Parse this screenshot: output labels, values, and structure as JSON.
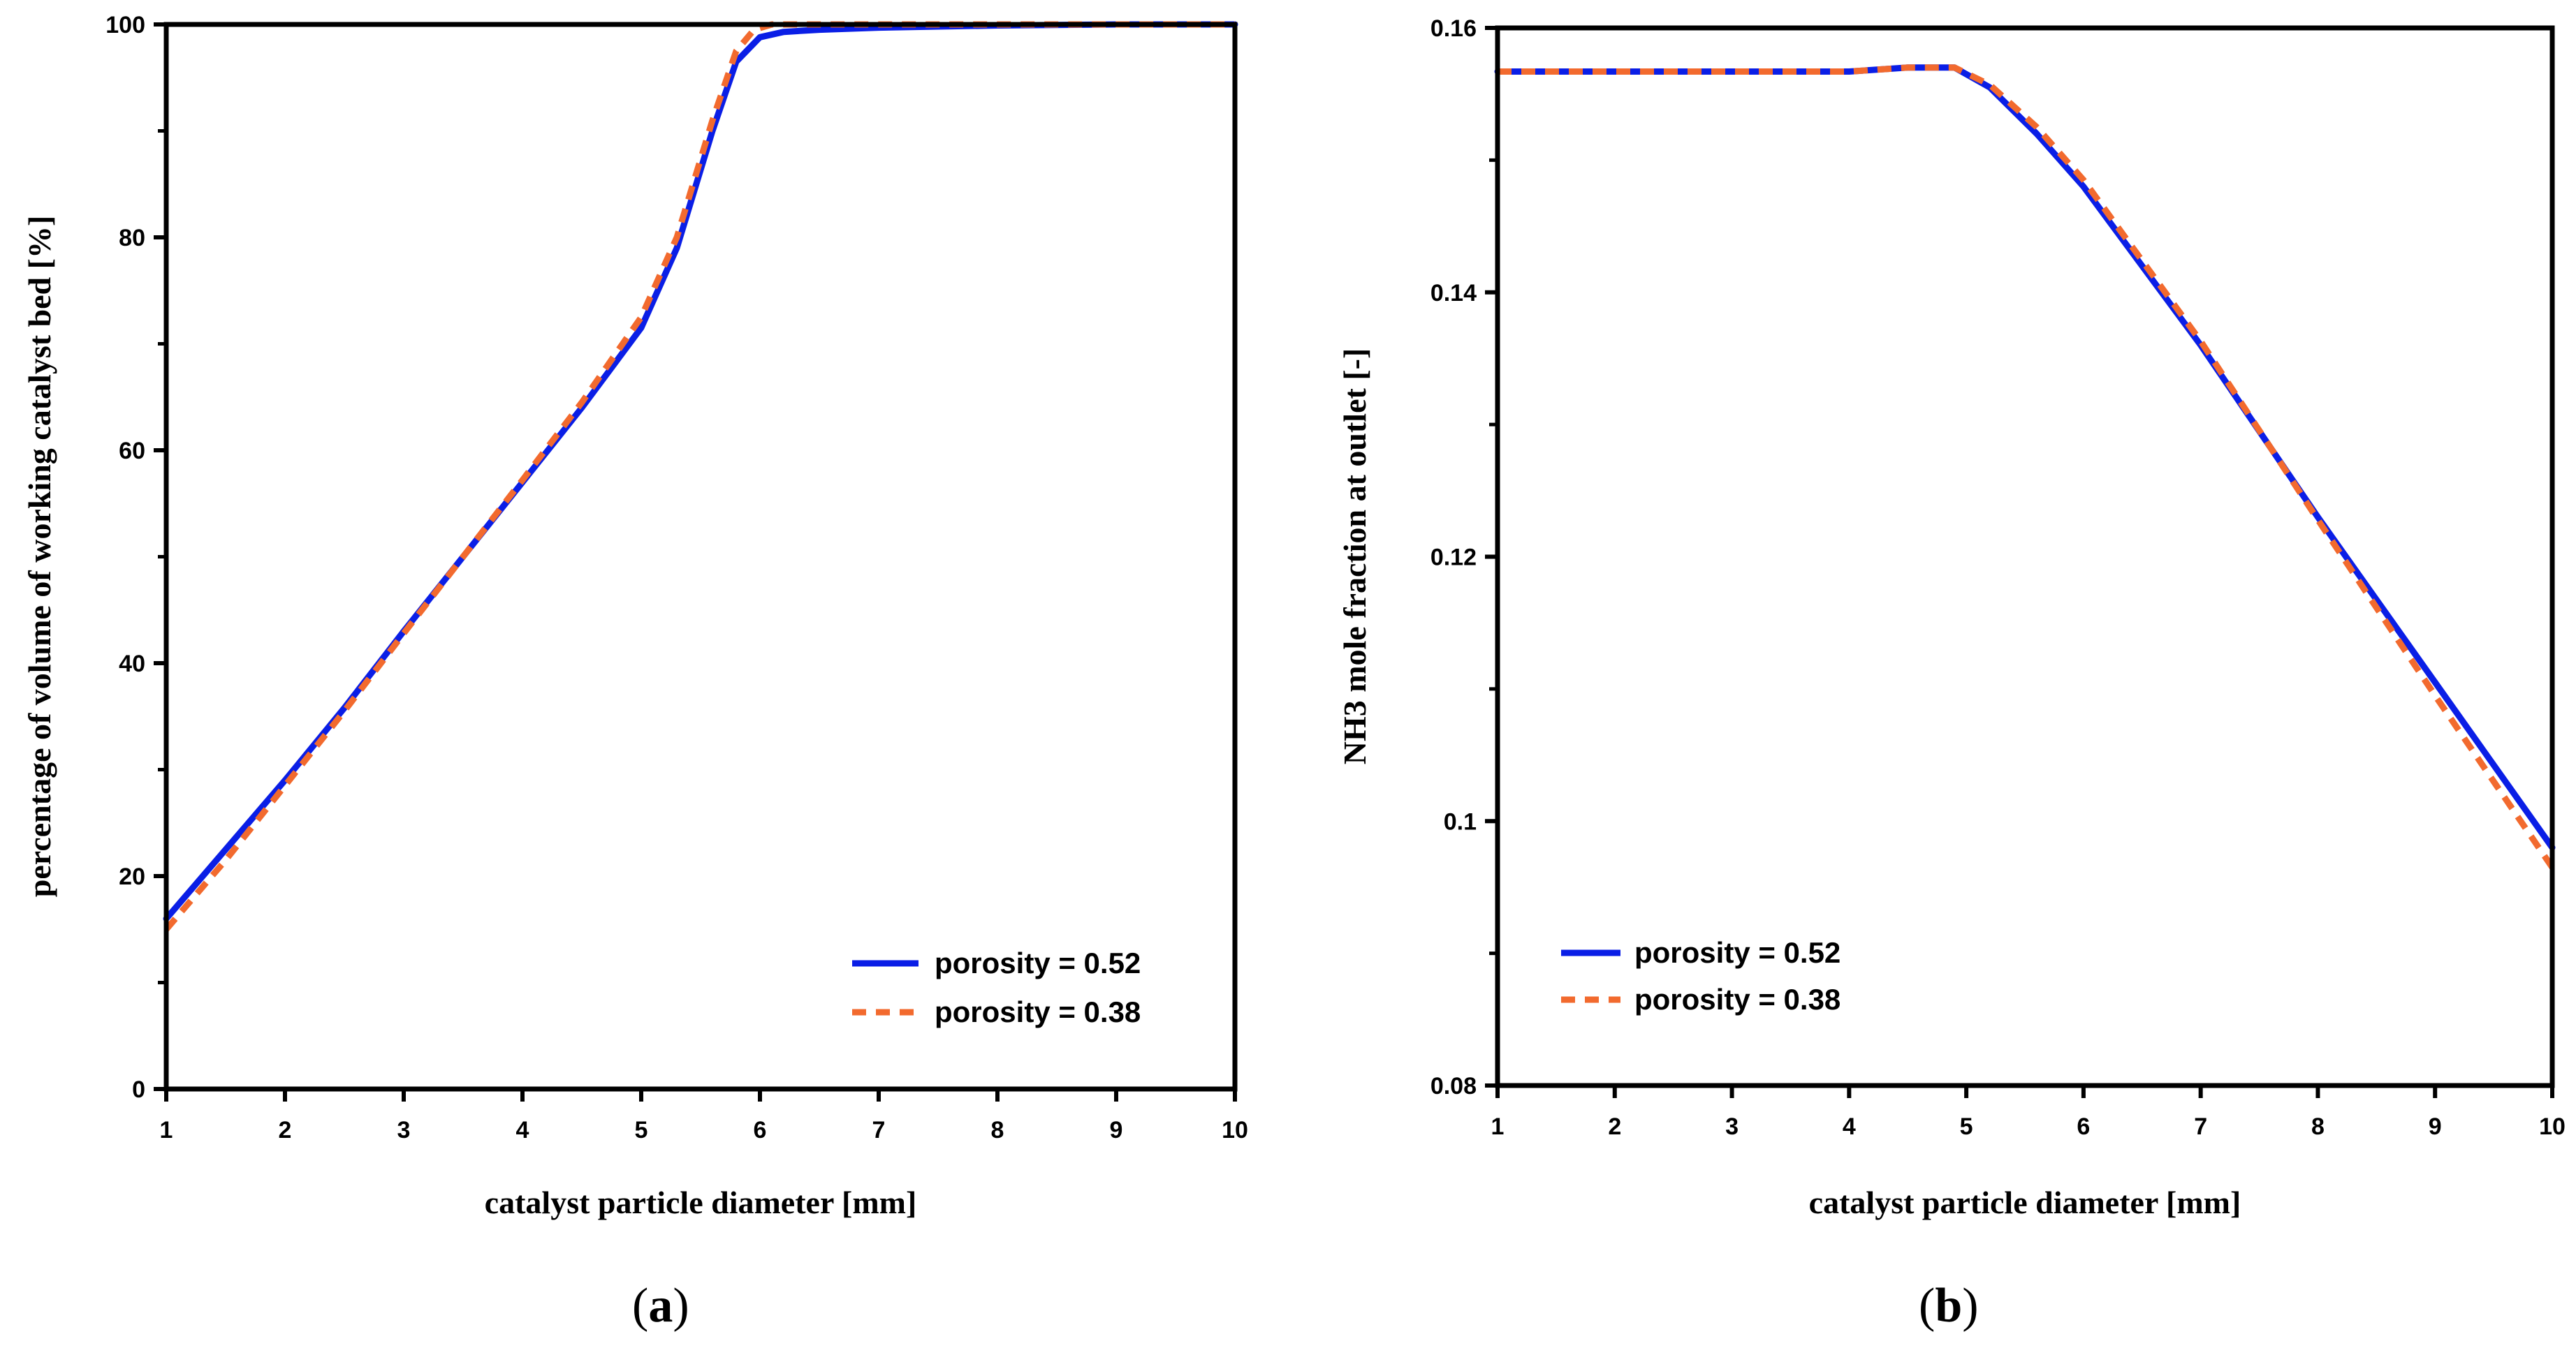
{
  "chart_data": [
    {
      "type": "line",
      "panel_label": "(a)",
      "panel_letter": "a",
      "xlabel": "catalyst particle diameter [mm]",
      "ylabel": "percentage of volume of working catalyst bed  [%]",
      "xlim": [
        1,
        10
      ],
      "ylim": [
        0,
        100
      ],
      "xticks": [
        "1",
        "2",
        "3",
        "4",
        "5",
        "6",
        "7",
        "8",
        "9",
        "10"
      ],
      "yticks": [
        "0",
        "20",
        "40",
        "60",
        "80",
        "100"
      ],
      "legend_position": "bottom-right",
      "series": [
        {
          "name": "porosity = 0.52",
          "color": "#0a1ee6",
          "style": "solid",
          "x": [
            1,
            1.5,
            2,
            2.5,
            3,
            3.5,
            4,
            4.5,
            5,
            5.3,
            5.6,
            5.8,
            6.0,
            6.2,
            6.5,
            7,
            8,
            9,
            10
          ],
          "y": [
            16,
            22.5,
            29,
            35.8,
            43,
            50,
            57,
            64,
            71.5,
            79,
            90,
            96.5,
            98.8,
            99.3,
            99.5,
            99.7,
            99.9,
            100,
            100
          ]
        },
        {
          "name": "porosity = 0.38",
          "color": "#f26a2e",
          "style": "dashed",
          "x": [
            1,
            1.5,
            2,
            2.5,
            3,
            3.5,
            4,
            4.5,
            5,
            5.3,
            5.6,
            5.8,
            5.95,
            6.1,
            6.5,
            7,
            8,
            9,
            10
          ],
          "y": [
            15,
            21.5,
            28.5,
            35.5,
            42.8,
            50,
            57.2,
            64.5,
            72.5,
            80,
            91,
            97.5,
            99.5,
            100,
            100,
            100,
            100,
            100,
            100
          ]
        }
      ]
    },
    {
      "type": "line",
      "panel_label": "(b)",
      "panel_letter": "b",
      "xlabel": "catalyst particle diameter [mm]",
      "ylabel": "NH3 mole fraction at outlet [-]",
      "xlim": [
        1,
        10
      ],
      "ylim": [
        0.08,
        0.16
      ],
      "xticks": [
        "1",
        "2",
        "3",
        "4",
        "5",
        "6",
        "7",
        "8",
        "9",
        "10"
      ],
      "yticks": [
        "0.08",
        "0.1",
        "0.12",
        "0.14",
        "0.16"
      ],
      "legend_position": "bottom-left",
      "series": [
        {
          "name": "porosity = 0.52",
          "color": "#0a1ee6",
          "style": "solid",
          "x": [
            1,
            2,
            3,
            4,
            4.5,
            4.9,
            5.2,
            5.6,
            6,
            7,
            8,
            9,
            10
          ],
          "y": [
            0.1567,
            0.1567,
            0.1567,
            0.1567,
            0.157,
            0.157,
            0.1555,
            0.152,
            0.148,
            0.136,
            0.123,
            0.1105,
            0.098
          ]
        },
        {
          "name": "porosity = 0.38",
          "color": "#f26a2e",
          "style": "dashed",
          "x": [
            1,
            2,
            3,
            4,
            4.5,
            4.9,
            5.2,
            5.6,
            6,
            7,
            8,
            9,
            10
          ],
          "y": [
            0.1567,
            0.1567,
            0.1567,
            0.1567,
            0.157,
            0.157,
            0.1557,
            0.1525,
            0.1485,
            0.1363,
            0.1228,
            0.1095,
            0.0965
          ]
        }
      ]
    }
  ]
}
